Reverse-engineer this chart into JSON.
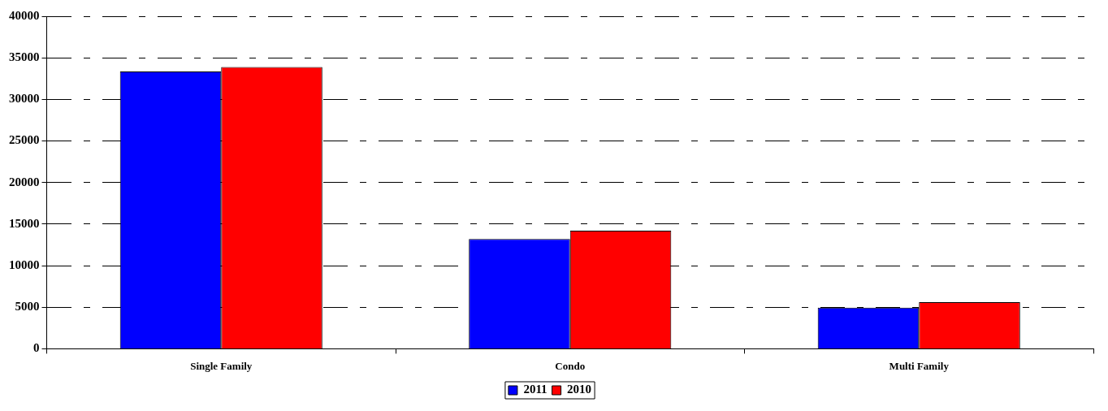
{
  "chart_data": {
    "type": "bar",
    "categories": [
      "Single Family",
      "Condo",
      "Multi Family"
    ],
    "series": [
      {
        "name": "2011",
        "color": "#0000ff",
        "values": [
          33350,
          13200,
          4950
        ]
      },
      {
        "name": "2010",
        "color": "#ff0000",
        "values": [
          33900,
          14200,
          5600
        ]
      }
    ],
    "ylim": [
      0,
      40000
    ],
    "yticks": [
      0,
      5000,
      10000,
      15000,
      20000,
      25000,
      30000,
      35000,
      40000
    ],
    "grid": "y",
    "legend": "bottom"
  }
}
